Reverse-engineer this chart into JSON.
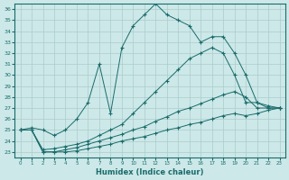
{
  "xlabel": "Humidex (Indice chaleur)",
  "background_color": "#cde8e8",
  "grid_color": "#aacccc",
  "line_color": "#1a6b6b",
  "xlim": [
    -0.5,
    23.5
  ],
  "ylim": [
    22.5,
    36.5
  ],
  "yticks": [
    23,
    24,
    25,
    26,
    27,
    28,
    29,
    30,
    31,
    32,
    33,
    34,
    35,
    36
  ],
  "xticks": [
    0,
    1,
    2,
    3,
    4,
    5,
    6,
    7,
    8,
    9,
    10,
    11,
    12,
    13,
    14,
    15,
    16,
    17,
    18,
    19,
    20,
    21,
    22,
    23
  ],
  "line1_x": [
    0,
    1,
    2,
    3,
    4,
    5,
    6,
    7,
    8,
    9,
    10,
    11,
    12,
    13,
    14,
    15,
    16,
    17,
    18,
    19,
    20,
    21,
    22,
    23
  ],
  "line1_y": [
    25.0,
    25.2,
    25.0,
    24.5,
    25.0,
    26.0,
    27.5,
    31.0,
    26.5,
    32.5,
    34.5,
    35.5,
    36.5,
    35.5,
    35.0,
    34.5,
    33.0,
    33.5,
    33.5,
    32.0,
    30.0,
    27.5,
    27.0,
    27.0
  ],
  "line2_x": [
    0,
    1,
    2,
    3,
    4,
    5,
    6,
    7,
    8,
    9,
    10,
    11,
    12,
    13,
    14,
    15,
    16,
    17,
    18,
    19,
    20,
    21,
    22,
    23
  ],
  "line2_y": [
    25.0,
    25.0,
    23.2,
    23.3,
    23.5,
    23.7,
    24.0,
    24.5,
    25.0,
    25.5,
    26.5,
    27.5,
    28.5,
    29.5,
    30.5,
    31.5,
    32.0,
    32.5,
    32.0,
    30.0,
    27.5,
    27.5,
    27.2,
    27.0
  ],
  "line3_x": [
    0,
    1,
    2,
    3,
    4,
    5,
    6,
    7,
    8,
    9,
    10,
    11,
    12,
    13,
    14,
    15,
    16,
    17,
    18,
    19,
    20,
    21,
    22,
    23
  ],
  "line3_y": [
    25.0,
    25.0,
    23.0,
    23.0,
    23.2,
    23.4,
    23.7,
    24.0,
    24.3,
    24.6,
    25.0,
    25.3,
    25.8,
    26.2,
    26.7,
    27.0,
    27.4,
    27.8,
    28.2,
    28.5,
    28.0,
    27.0,
    27.0,
    27.0
  ],
  "line4_x": [
    0,
    1,
    2,
    3,
    4,
    5,
    6,
    7,
    8,
    9,
    10,
    11,
    12,
    13,
    14,
    15,
    16,
    17,
    18,
    19,
    20,
    21,
    22,
    23
  ],
  "line4_y": [
    25.0,
    25.0,
    23.0,
    23.0,
    23.0,
    23.1,
    23.3,
    23.5,
    23.7,
    24.0,
    24.2,
    24.4,
    24.7,
    25.0,
    25.2,
    25.5,
    25.7,
    26.0,
    26.3,
    26.5,
    26.3,
    26.5,
    26.8,
    27.0
  ]
}
